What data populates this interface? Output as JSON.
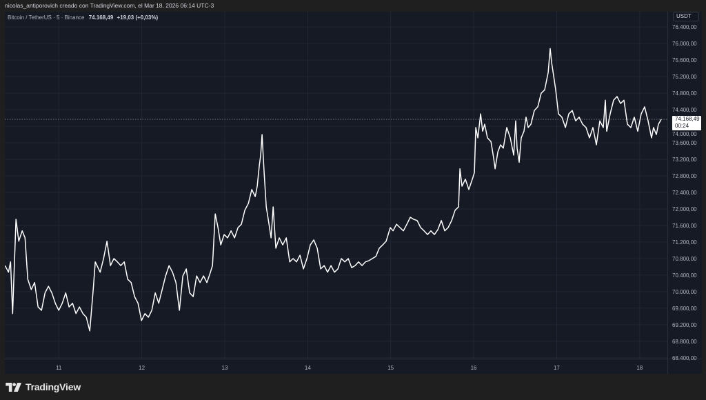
{
  "attribution": "nicolas_antiporovich creado con TradingView.com, el Mar 18, 2026 06:14 UTC-3",
  "legend": {
    "symbol": "Bitcoin / TetherUS · 5 · Binance",
    "price": "74.168,49",
    "change": "+19,03 (+0,03%)"
  },
  "currency": "USDT",
  "last_price": {
    "value": "74.168,49",
    "countdown": "00:24"
  },
  "logo": "TradingView",
  "colors": {
    "background": "#161a25",
    "frame": "#1f1f1f",
    "line": "#ffffff",
    "grid": "#222633",
    "text": "#b2b5be"
  },
  "chart_data": {
    "type": "line",
    "title": "Bitcoin / TetherUS · 5 · Binance",
    "xlabel": "",
    "ylabel": "",
    "grid": true,
    "xlim": [
      "2026-03-10T08:24",
      "2026-03-18T08:01"
    ],
    "ylim": [
      68380,
      76770
    ],
    "x_ticks": [
      {
        "label": "11",
        "t": "2026-03-11T00:00"
      },
      {
        "label": "12",
        "t": "2026-03-12T00:00"
      },
      {
        "label": "13",
        "t": "2026-03-13T00:00"
      },
      {
        "label": "14",
        "t": "2026-03-14T00:00"
      },
      {
        "label": "15",
        "t": "2026-03-15T00:00"
      },
      {
        "label": "16",
        "t": "2026-03-16T00:00"
      },
      {
        "label": "17",
        "t": "2026-03-17T00:00"
      },
      {
        "label": "18",
        "t": "2026-03-18T00:00"
      }
    ],
    "y_ticks": [
      {
        "label": "76.400,00",
        "v": 76400
      },
      {
        "label": "76.000,00",
        "v": 76000
      },
      {
        "label": "75.600,00",
        "v": 75600
      },
      {
        "label": "75.200,00",
        "v": 75200
      },
      {
        "label": "74.800,00",
        "v": 74800
      },
      {
        "label": "74.400,00",
        "v": 74400
      },
      {
        "label": "74.000,00",
        "v": 74000
      },
      {
        "label": "73.600,00",
        "v": 73600
      },
      {
        "label": "73.200,00",
        "v": 73200
      },
      {
        "label": "72.800,00",
        "v": 72800
      },
      {
        "label": "72.400,00",
        "v": 72400
      },
      {
        "label": "72.000,00",
        "v": 72000
      },
      {
        "label": "71.600,00",
        "v": 71600
      },
      {
        "label": "71.200,00",
        "v": 71200
      },
      {
        "label": "70.800,00",
        "v": 70800
      },
      {
        "label": "70.400,00",
        "v": 70400
      },
      {
        "label": "70.000,00",
        "v": 70000
      },
      {
        "label": "69.600,00",
        "v": 69600
      },
      {
        "label": "69.200,00",
        "v": 69200
      },
      {
        "label": "68.800,00",
        "v": 68800
      },
      {
        "label": "68.400,00",
        "v": 68400
      }
    ],
    "last_value": 74168.49,
    "points": [
      [
        "2026-03-10T08:27",
        70630
      ],
      [
        "2026-03-10T09:27",
        70470
      ],
      [
        "2026-03-10T10:03",
        70720
      ],
      [
        "2026-03-10T10:39",
        69470
      ],
      [
        "2026-03-10T11:38",
        71750
      ],
      [
        "2026-03-10T12:26",
        71220
      ],
      [
        "2026-03-10T13:26",
        71470
      ],
      [
        "2026-03-10T14:14",
        71300
      ],
      [
        "2026-03-10T15:02",
        70300
      ],
      [
        "2026-03-10T16:02",
        70050
      ],
      [
        "2026-03-10T17:01",
        70220
      ],
      [
        "2026-03-10T18:01",
        69630
      ],
      [
        "2026-03-10T19:01",
        69550
      ],
      [
        "2026-03-10T20:01",
        69970
      ],
      [
        "2026-03-10T21:01",
        70130
      ],
      [
        "2026-03-10T22:00",
        69970
      ],
      [
        "2026-03-10T23:00",
        69720
      ],
      [
        "2026-03-11T00:00",
        69550
      ],
      [
        "2026-03-11T01:00",
        69720
      ],
      [
        "2026-03-11T02:00",
        69970
      ],
      [
        "2026-03-11T02:59",
        69630
      ],
      [
        "2026-03-11T03:59",
        69720
      ],
      [
        "2026-03-11T04:59",
        69470
      ],
      [
        "2026-03-11T05:59",
        69630
      ],
      [
        "2026-03-11T06:59",
        69470
      ],
      [
        "2026-03-11T07:58",
        69380
      ],
      [
        "2026-03-11T08:58",
        69050
      ],
      [
        "2026-03-11T09:58",
        70050
      ],
      [
        "2026-03-11T10:34",
        70720
      ],
      [
        "2026-03-11T11:58",
        70470
      ],
      [
        "2026-03-11T12:57",
        70800
      ],
      [
        "2026-03-11T13:57",
        71220
      ],
      [
        "2026-03-11T14:57",
        70630
      ],
      [
        "2026-03-11T15:57",
        70800
      ],
      [
        "2026-03-11T16:57",
        70720
      ],
      [
        "2026-03-11T17:56",
        70630
      ],
      [
        "2026-03-11T18:56",
        70720
      ],
      [
        "2026-03-11T19:56",
        70300
      ],
      [
        "2026-03-11T20:56",
        70220
      ],
      [
        "2026-03-11T21:56",
        69880
      ],
      [
        "2026-03-11T22:55",
        69720
      ],
      [
        "2026-03-11T23:55",
        69300
      ],
      [
        "2026-03-12T00:55",
        69470
      ],
      [
        "2026-03-12T01:55",
        69380
      ],
      [
        "2026-03-12T02:55",
        69550
      ],
      [
        "2026-03-12T03:54",
        69970
      ],
      [
        "2026-03-12T04:54",
        69720
      ],
      [
        "2026-03-12T05:54",
        70050
      ],
      [
        "2026-03-12T06:54",
        70380
      ],
      [
        "2026-03-12T07:54",
        70630
      ],
      [
        "2026-03-12T08:53",
        70470
      ],
      [
        "2026-03-12T09:53",
        70220
      ],
      [
        "2026-03-12T10:53",
        69550
      ],
      [
        "2026-03-12T11:53",
        70380
      ],
      [
        "2026-03-12T12:53",
        70550
      ],
      [
        "2026-03-12T13:52",
        69970
      ],
      [
        "2026-03-12T14:52",
        69880
      ],
      [
        "2026-03-12T15:52",
        70380
      ],
      [
        "2026-03-12T16:52",
        70220
      ],
      [
        "2026-03-12T17:52",
        70380
      ],
      [
        "2026-03-12T18:51",
        70220
      ],
      [
        "2026-03-12T19:51",
        70470
      ],
      [
        "2026-03-12T20:27",
        70630
      ],
      [
        "2026-03-12T21:15",
        71880
      ],
      [
        "2026-03-12T22:03",
        71550
      ],
      [
        "2026-03-12T22:51",
        71130
      ],
      [
        "2026-03-12T23:50",
        71380
      ],
      [
        "2026-03-13T00:50",
        71300
      ],
      [
        "2026-03-13T01:50",
        71470
      ],
      [
        "2026-03-13T02:50",
        71300
      ],
      [
        "2026-03-13T03:50",
        71550
      ],
      [
        "2026-03-13T04:49",
        71630
      ],
      [
        "2026-03-13T05:49",
        71970
      ],
      [
        "2026-03-13T06:49",
        72130
      ],
      [
        "2026-03-13T07:49",
        72470
      ],
      [
        "2026-03-13T08:49",
        72300
      ],
      [
        "2026-03-13T09:24",
        72550
      ],
      [
        "2026-03-13T10:00",
        73050
      ],
      [
        "2026-03-13T10:24",
        73300
      ],
      [
        "2026-03-13T10:48",
        73800
      ],
      [
        "2026-03-13T11:24",
        72880
      ],
      [
        "2026-03-13T12:00",
        72050
      ],
      [
        "2026-03-13T12:48",
        71630
      ],
      [
        "2026-03-13T13:24",
        71300
      ],
      [
        "2026-03-13T14:00",
        72050
      ],
      [
        "2026-03-13T14:47",
        71050
      ],
      [
        "2026-03-13T15:47",
        71300
      ],
      [
        "2026-03-13T16:47",
        71130
      ],
      [
        "2026-03-13T17:47",
        71300
      ],
      [
        "2026-03-13T18:47",
        70720
      ],
      [
        "2026-03-13T19:46",
        70800
      ],
      [
        "2026-03-13T20:46",
        70720
      ],
      [
        "2026-03-13T21:46",
        70880
      ],
      [
        "2026-03-13T22:46",
        70550
      ],
      [
        "2026-03-13T23:46",
        70800
      ],
      [
        "2026-03-14T00:45",
        71130
      ],
      [
        "2026-03-14T01:45",
        71250
      ],
      [
        "2026-03-14T02:45",
        71050
      ],
      [
        "2026-03-14T03:45",
        70550
      ],
      [
        "2026-03-14T04:45",
        70630
      ],
      [
        "2026-03-14T05:44",
        70470
      ],
      [
        "2026-03-14T06:44",
        70630
      ],
      [
        "2026-03-14T07:44",
        70470
      ],
      [
        "2026-03-14T08:44",
        70550
      ],
      [
        "2026-03-14T09:44",
        70800
      ],
      [
        "2026-03-14T10:43",
        70720
      ],
      [
        "2026-03-14T11:43",
        70800
      ],
      [
        "2026-03-14T12:43",
        70580
      ],
      [
        "2026-03-14T13:43",
        70630
      ],
      [
        "2026-03-14T14:43",
        70720
      ],
      [
        "2026-03-14T15:42",
        70630
      ],
      [
        "2026-03-14T16:42",
        70720
      ],
      [
        "2026-03-14T17:42",
        70750
      ],
      [
        "2026-03-14T18:42",
        70800
      ],
      [
        "2026-03-14T19:42",
        70850
      ],
      [
        "2026-03-14T20:41",
        71050
      ],
      [
        "2026-03-14T21:41",
        71130
      ],
      [
        "2026-03-14T22:41",
        71220
      ],
      [
        "2026-03-14T23:53",
        71550
      ],
      [
        "2026-03-15T00:41",
        71470
      ],
      [
        "2026-03-15T01:40",
        71630
      ],
      [
        "2026-03-15T02:40",
        71550
      ],
      [
        "2026-03-15T03:40",
        71470
      ],
      [
        "2026-03-15T04:40",
        71630
      ],
      [
        "2026-03-15T05:40",
        71800
      ],
      [
        "2026-03-15T06:39",
        71750
      ],
      [
        "2026-03-15T07:39",
        71720
      ],
      [
        "2026-03-15T08:39",
        71550
      ],
      [
        "2026-03-15T09:39",
        71470
      ],
      [
        "2026-03-15T10:39",
        71380
      ],
      [
        "2026-03-15T11:38",
        71470
      ],
      [
        "2026-03-15T12:38",
        71380
      ],
      [
        "2026-03-15T13:38",
        71500
      ],
      [
        "2026-03-15T14:38",
        71720
      ],
      [
        "2026-03-15T15:38",
        71470
      ],
      [
        "2026-03-15T16:37",
        71550
      ],
      [
        "2026-03-15T17:37",
        71720
      ],
      [
        "2026-03-15T18:37",
        71970
      ],
      [
        "2026-03-15T19:37",
        72050
      ],
      [
        "2026-03-15T20:01",
        72970
      ],
      [
        "2026-03-15T20:37",
        72550
      ],
      [
        "2026-03-15T21:36",
        72720
      ],
      [
        "2026-03-15T22:36",
        72470
      ],
      [
        "2026-03-15T23:36",
        72720
      ],
      [
        "2026-03-16T00:12",
        72880
      ],
      [
        "2026-03-16T00:36",
        73970
      ],
      [
        "2026-03-16T01:12",
        73720
      ],
      [
        "2026-03-16T02:00",
        74300
      ],
      [
        "2026-03-16T02:35",
        73880
      ],
      [
        "2026-03-16T03:11",
        74050
      ],
      [
        "2026-03-16T03:59",
        73720
      ],
      [
        "2026-03-16T04:59",
        73630
      ],
      [
        "2026-03-16T05:47",
        73220
      ],
      [
        "2026-03-16T06:11",
        72970
      ],
      [
        "2026-03-16T06:59",
        73380
      ],
      [
        "2026-03-16T07:46",
        73550
      ],
      [
        "2026-03-16T08:34",
        73470
      ],
      [
        "2026-03-16T09:34",
        73970
      ],
      [
        "2026-03-16T10:34",
        73720
      ],
      [
        "2026-03-16T11:34",
        73300
      ],
      [
        "2026-03-16T12:09",
        74130
      ],
      [
        "2026-03-16T12:33",
        73470
      ],
      [
        "2026-03-16T13:09",
        73130
      ],
      [
        "2026-03-16T13:45",
        73720
      ],
      [
        "2026-03-16T14:33",
        73880
      ],
      [
        "2026-03-16T15:09",
        74220
      ],
      [
        "2026-03-16T15:45",
        73970
      ],
      [
        "2026-03-16T16:33",
        74050
      ],
      [
        "2026-03-16T17:32",
        74380
      ],
      [
        "2026-03-16T18:32",
        74470
      ],
      [
        "2026-03-16T19:32",
        74800
      ],
      [
        "2026-03-16T20:32",
        74880
      ],
      [
        "2026-03-16T21:32",
        75300
      ],
      [
        "2026-03-16T22:07",
        75880
      ],
      [
        "2026-03-16T22:31",
        75550
      ],
      [
        "2026-03-16T23:07",
        75220
      ],
      [
        "2026-03-16T23:43",
        74880
      ],
      [
        "2026-03-17T00:31",
        74300
      ],
      [
        "2026-03-17T01:31",
        74220
      ],
      [
        "2026-03-17T02:31",
        73970
      ],
      [
        "2026-03-17T03:30",
        74300
      ],
      [
        "2026-03-17T04:30",
        74380
      ],
      [
        "2026-03-17T05:30",
        74130
      ],
      [
        "2026-03-17T06:30",
        74220
      ],
      [
        "2026-03-17T07:30",
        74050
      ],
      [
        "2026-03-17T08:29",
        73970
      ],
      [
        "2026-03-17T09:29",
        73720
      ],
      [
        "2026-03-17T10:29",
        73970
      ],
      [
        "2026-03-17T11:29",
        73550
      ],
      [
        "2026-03-17T12:29",
        74130
      ],
      [
        "2026-03-17T13:28",
        73970
      ],
      [
        "2026-03-17T14:04",
        74630
      ],
      [
        "2026-03-17T14:28",
        73880
      ],
      [
        "2026-03-17T15:28",
        74300
      ],
      [
        "2026-03-17T16:28",
        74630
      ],
      [
        "2026-03-17T17:28",
        74720
      ],
      [
        "2026-03-17T18:27",
        74550
      ],
      [
        "2026-03-17T19:27",
        74630
      ],
      [
        "2026-03-17T20:27",
        74050
      ],
      [
        "2026-03-17T21:27",
        73970
      ],
      [
        "2026-03-17T22:27",
        74220
      ],
      [
        "2026-03-17T23:26",
        73880
      ],
      [
        "2026-03-18T00:26",
        74300
      ],
      [
        "2026-03-18T01:26",
        74470
      ],
      [
        "2026-03-18T02:26",
        74130
      ],
      [
        "2026-03-18T03:26",
        73720
      ],
      [
        "2026-03-18T04:01",
        73970
      ],
      [
        "2026-03-18T04:49",
        73800
      ],
      [
        "2026-03-18T05:25",
        74050
      ],
      [
        "2026-03-18T06:14",
        74168
      ]
    ]
  }
}
